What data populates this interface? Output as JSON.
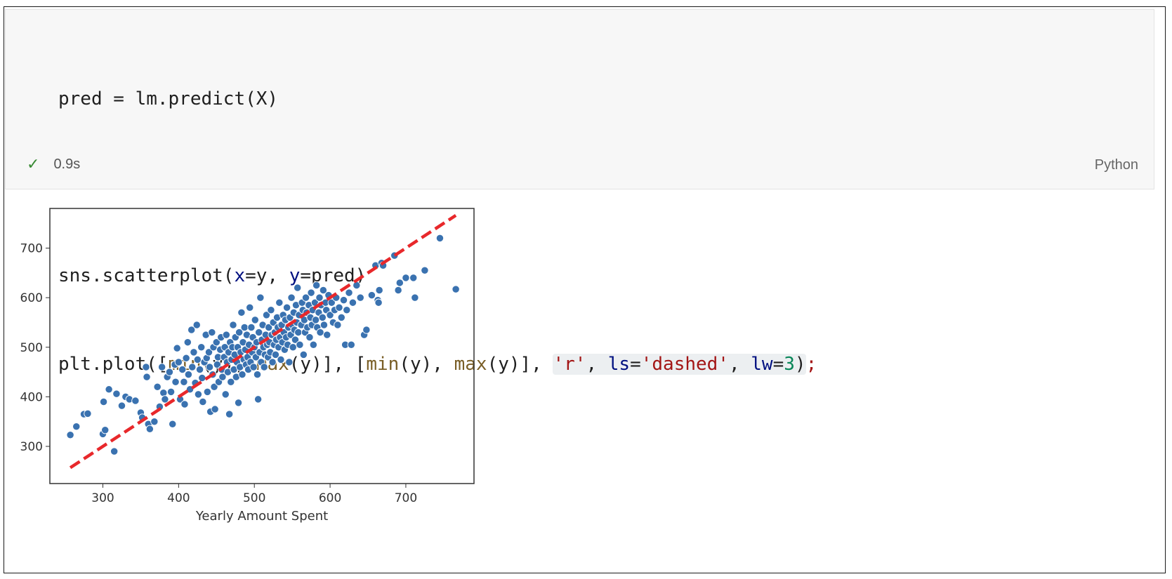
{
  "code": {
    "line1": "pred = lm.predict(X)",
    "line3_prefix": "sns.scatterplot(",
    "line3_x": "x",
    "line3_mid": "=y, ",
    "line3_y": "y",
    "line3_suffix": "=pred)",
    "line4_a": "plt.plot([",
    "line4_min1": "min",
    "line4_b": "(y), ",
    "line4_max1": "max",
    "line4_c": "(y)], [",
    "line4_min2": "min",
    "line4_d": "(y), ",
    "line4_max2": "max",
    "line4_e": "(y)], ",
    "line4_r": "'r'",
    "line4_comma1": ", ",
    "line4_ls": "ls",
    "line4_eq1": "=",
    "line4_dashed": "'dashed'",
    "line4_comma2": ", ",
    "line4_lw": "lw",
    "line4_eq2": "=",
    "line4_three": "3",
    "line4_close": ")",
    "line4_semi": ";"
  },
  "status": {
    "duration": "0.9s",
    "language": "Python"
  },
  "colors": {
    "point_fill": "#3a72b0",
    "line_color": "#e8282b",
    "check": "#388a34"
  },
  "chart_data": {
    "type": "scatter",
    "xlabel": "Yearly Amount Spent",
    "ylabel": "",
    "xlim": [
      230,
      790
    ],
    "ylim": [
      225,
      780
    ],
    "xticks": [
      300,
      400,
      500,
      600,
      700
    ],
    "yticks": [
      300,
      400,
      500,
      600,
      700
    ],
    "grid": false,
    "reference_line": {
      "x": [
        257,
        766
      ],
      "y": [
        257,
        766
      ],
      "style": "dashed",
      "color": "red",
      "width": 3
    },
    "points": [
      [
        257,
        323
      ],
      [
        265,
        340
      ],
      [
        275,
        365
      ],
      [
        280,
        366
      ],
      [
        300,
        325
      ],
      [
        303,
        333
      ],
      [
        301,
        390
      ],
      [
        308,
        415
      ],
      [
        315,
        290
      ],
      [
        318,
        406
      ],
      [
        325,
        382
      ],
      [
        330,
        400
      ],
      [
        335,
        395
      ],
      [
        343,
        392
      ],
      [
        350,
        368
      ],
      [
        352,
        358
      ],
      [
        357,
        460
      ],
      [
        358,
        440
      ],
      [
        360,
        345
      ],
      [
        362,
        335
      ],
      [
        368,
        350
      ],
      [
        372,
        420
      ],
      [
        375,
        380
      ],
      [
        378,
        460
      ],
      [
        380,
        408
      ],
      [
        382,
        395
      ],
      [
        385,
        440
      ],
      [
        388,
        450
      ],
      [
        390,
        410
      ],
      [
        392,
        345
      ],
      [
        395,
        465
      ],
      [
        396,
        430
      ],
      [
        398,
        498
      ],
      [
        400,
        470
      ],
      [
        402,
        395
      ],
      [
        405,
        455
      ],
      [
        407,
        430
      ],
      [
        408,
        385
      ],
      [
        410,
        478
      ],
      [
        412,
        510
      ],
      [
        413,
        445
      ],
      [
        415,
        415
      ],
      [
        417,
        535
      ],
      [
        418,
        460
      ],
      [
        420,
        490
      ],
      [
        422,
        428
      ],
      [
        424,
        545
      ],
      [
        425,
        475
      ],
      [
        426,
        405
      ],
      [
        428,
        455
      ],
      [
        430,
        500
      ],
      [
        431,
        438
      ],
      [
        432,
        390
      ],
      [
        434,
        470
      ],
      [
        436,
        525
      ],
      [
        437,
        478
      ],
      [
        438,
        410
      ],
      [
        440,
        490
      ],
      [
        441,
        460
      ],
      [
        442,
        370
      ],
      [
        444,
        530
      ],
      [
        445,
        445
      ],
      [
        446,
        500
      ],
      [
        447,
        420
      ],
      [
        448,
        375
      ],
      [
        450,
        510
      ],
      [
        451,
        465
      ],
      [
        452,
        480
      ],
      [
        453,
        430
      ],
      [
        455,
        495
      ],
      [
        456,
        520
      ],
      [
        457,
        455
      ],
      [
        458,
        440
      ],
      [
        460,
        480
      ],
      [
        461,
        500
      ],
      [
        462,
        405
      ],
      [
        463,
        525
      ],
      [
        464,
        470
      ],
      [
        465,
        450
      ],
      [
        466,
        490
      ],
      [
        467,
        365
      ],
      [
        468,
        510
      ],
      [
        469,
        430
      ],
      [
        470,
        475
      ],
      [
        471,
        500
      ],
      [
        472,
        545
      ],
      [
        473,
        455
      ],
      [
        474,
        485
      ],
      [
        475,
        520
      ],
      [
        476,
        440
      ],
      [
        477,
        470
      ],
      [
        478,
        500
      ],
      [
        479,
        388
      ],
      [
        480,
        530
      ],
      [
        481,
        460
      ],
      [
        482,
        490
      ],
      [
        483,
        570
      ],
      [
        484,
        445
      ],
      [
        485,
        510
      ],
      [
        486,
        475
      ],
      [
        487,
        540
      ],
      [
        488,
        495
      ],
      [
        489,
        465
      ],
      [
        490,
        525
      ],
      [
        491,
        480
      ],
      [
        492,
        455
      ],
      [
        493,
        505
      ],
      [
        494,
        580
      ],
      [
        495,
        470
      ],
      [
        496,
        540
      ],
      [
        497,
        490
      ],
      [
        498,
        520
      ],
      [
        499,
        460
      ],
      [
        500,
        500
      ],
      [
        501,
        555
      ],
      [
        502,
        480
      ],
      [
        503,
        510
      ],
      [
        504,
        445
      ],
      [
        505,
        395
      ],
      [
        506,
        530
      ],
      [
        507,
        490
      ],
      [
        508,
        600
      ],
      [
        509,
        470
      ],
      [
        510,
        515
      ],
      [
        511,
        545
      ],
      [
        512,
        500
      ],
      [
        513,
        460
      ],
      [
        514,
        485
      ],
      [
        515,
        525
      ],
      [
        516,
        565
      ],
      [
        517,
        505
      ],
      [
        518,
        480
      ],
      [
        519,
        540
      ],
      [
        520,
        510
      ],
      [
        521,
        490
      ],
      [
        522,
        575
      ],
      [
        523,
        525
      ],
      [
        524,
        470
      ],
      [
        525,
        550
      ],
      [
        526,
        505
      ],
      [
        527,
        530
      ],
      [
        528,
        485
      ],
      [
        529,
        515
      ],
      [
        530,
        560
      ],
      [
        531,
        540
      ],
      [
        532,
        500
      ],
      [
        533,
        590
      ],
      [
        534,
        520
      ],
      [
        535,
        475
      ],
      [
        536,
        545
      ],
      [
        537,
        510
      ],
      [
        538,
        565
      ],
      [
        539,
        530
      ],
      [
        540,
        495
      ],
      [
        541,
        555
      ],
      [
        542,
        520
      ],
      [
        543,
        580
      ],
      [
        544,
        505
      ],
      [
        545,
        540
      ],
      [
        546,
        470
      ],
      [
        547,
        560
      ],
      [
        548,
        525
      ],
      [
        549,
        600
      ],
      [
        550,
        545
      ],
      [
        551,
        500
      ],
      [
        552,
        570
      ],
      [
        553,
        535
      ],
      [
        554,
        515
      ],
      [
        555,
        585
      ],
      [
        556,
        550
      ],
      [
        557,
        620
      ],
      [
        558,
        530
      ],
      [
        559,
        565
      ],
      [
        560,
        505
      ],
      [
        562,
        545
      ],
      [
        563,
        590
      ],
      [
        564,
        575
      ],
      [
        565,
        485
      ],
      [
        566,
        555
      ],
      [
        567,
        530
      ],
      [
        568,
        600
      ],
      [
        569,
        570
      ],
      [
        570,
        540
      ],
      [
        572,
        585
      ],
      [
        573,
        520
      ],
      [
        574,
        560
      ],
      [
        575,
        610
      ],
      [
        576,
        545
      ],
      [
        577,
        575
      ],
      [
        578,
        505
      ],
      [
        580,
        590
      ],
      [
        581,
        555
      ],
      [
        582,
        625
      ],
      [
        583,
        540
      ],
      [
        585,
        570
      ],
      [
        586,
        600
      ],
      [
        587,
        530
      ],
      [
        588,
        585
      ],
      [
        590,
        560
      ],
      [
        591,
        615
      ],
      [
        592,
        545
      ],
      [
        594,
        590
      ],
      [
        595,
        575
      ],
      [
        596,
        525
      ],
      [
        598,
        605
      ],
      [
        600,
        565
      ],
      [
        602,
        590
      ],
      [
        604,
        550
      ],
      [
        606,
        575
      ],
      [
        608,
        600
      ],
      [
        610,
        545
      ],
      [
        612,
        580
      ],
      [
        615,
        560
      ],
      [
        618,
        595
      ],
      [
        620,
        505
      ],
      [
        622,
        575
      ],
      [
        625,
        610
      ],
      [
        628,
        505
      ],
      [
        630,
        590
      ],
      [
        635,
        625
      ],
      [
        640,
        600
      ],
      [
        645,
        525
      ],
      [
        648,
        535
      ],
      [
        655,
        605
      ],
      [
        660,
        665
      ],
      [
        663,
        595
      ],
      [
        664,
        590
      ],
      [
        665,
        615
      ],
      [
        668,
        670
      ],
      [
        670,
        665
      ],
      [
        685,
        685
      ],
      [
        690,
        615
      ],
      [
        692,
        630
      ],
      [
        700,
        640
      ],
      [
        710,
        640
      ],
      [
        712,
        600
      ],
      [
        725,
        655
      ],
      [
        745,
        720
      ],
      [
        766,
        617
      ]
    ]
  }
}
